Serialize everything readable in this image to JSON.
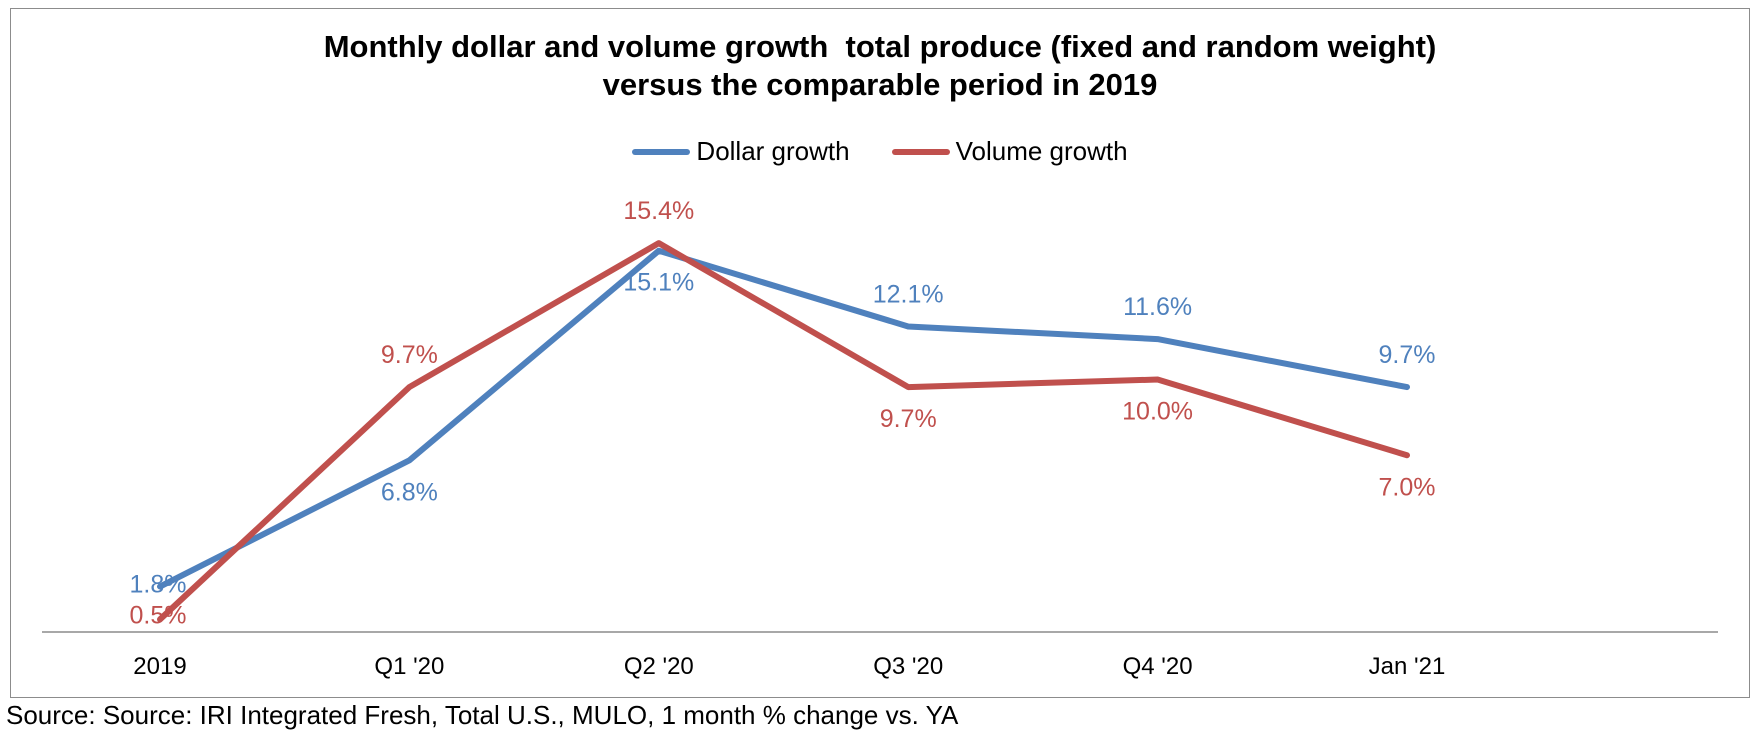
{
  "chart_data": {
    "type": "line",
    "title_lines": [
      "Monthly dollar and volume growth  total produce (fixed and random weight)",
      "versus the comparable period in 2019"
    ],
    "categories": [
      "2019",
      "Q1 '20",
      "Q2 '20",
      "Q3 '20",
      "Q4 '20",
      "Jan '21"
    ],
    "series": [
      {
        "name": "Dollar growth",
        "color": "#4F81BD",
        "values": [
          1.8,
          6.8,
          15.1,
          12.1,
          11.6,
          9.7
        ],
        "labels": [
          "1.8%",
          "6.8%",
          "15.1%",
          "12.1%",
          "11.6%",
          "9.7%"
        ]
      },
      {
        "name": "Volume growth",
        "color": "#C0504D",
        "values": [
          0.5,
          9.7,
          15.4,
          9.7,
          10.0,
          7.0
        ],
        "labels": [
          "0.5%",
          "9.7%",
          "15.4%",
          "9.7%",
          "10.0%",
          "7.0%"
        ]
      }
    ],
    "ylim": [
      0,
      16
    ],
    "grid": false,
    "legend_position": "top"
  },
  "source": "Source: Source: IRI Integrated Fresh, Total U.S., MULO, 1 month % change vs. YA"
}
